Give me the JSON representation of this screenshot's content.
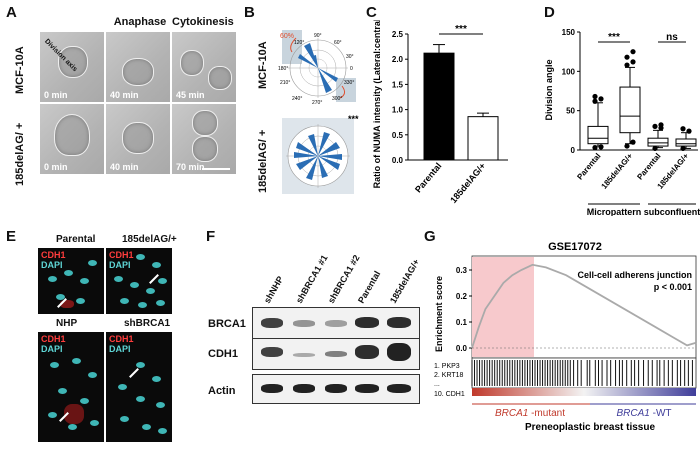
{
  "panel_letters": {
    "a": "A",
    "b": "B",
    "c": "C",
    "d": "D",
    "e": "E",
    "f": "F",
    "g": "G"
  },
  "panel_a": {
    "col_headers": [
      "Anaphase",
      "Cytokinesis"
    ],
    "row_labels": [
      "MCF-10A",
      "185delAG/ +"
    ],
    "axis_annotation": "Division axis",
    "times": [
      [
        "0 min",
        "40 min",
        "45 min"
      ],
      [
        "0 min",
        "40 min",
        "70 min"
      ]
    ]
  },
  "panel_b": {
    "row_labels": [
      "MCF-10A",
      "185delAG/ +"
    ],
    "percent_label": "60%",
    "angle_labels": [
      "90°",
      "120°",
      "60°",
      "150°",
      "30°",
      "180°",
      "0",
      "210°",
      "330°",
      "240°",
      "300°",
      "270°"
    ],
    "significance": "***"
  },
  "panel_c": {
    "chart_data": {
      "type": "bar",
      "categories": [
        "Parental",
        "185delAG/+"
      ],
      "values": [
        2.12,
        0.86
      ],
      "errors": [
        0.17,
        0.07
      ],
      "ylabel": "Ratio of NUMA intensity (Lateral:central)",
      "ylim": [
        0,
        2.5
      ],
      "yticks": [
        "0.0",
        "0.5",
        "1.0",
        "1.5",
        "2.0",
        "2.5"
      ],
      "significance": "***"
    }
  },
  "panel_d": {
    "chart_data": {
      "type": "box",
      "categories": [
        "Parental",
        "185delAG/+",
        "Parental",
        "185delAG/+"
      ],
      "groups": [
        "Micropattern",
        "subconfluent"
      ],
      "boxes": [
        {
          "min": 5,
          "q1": 8,
          "median": 15,
          "q3": 30,
          "max": 60,
          "outliers": [
            3,
            4,
            62,
            65,
            68
          ]
        },
        {
          "min": 8,
          "q1": 22,
          "median": 43,
          "q3": 80,
          "max": 105,
          "outliers": [
            5,
            10,
            108,
            112,
            118,
            125
          ]
        },
        {
          "min": 3,
          "q1": 5,
          "median": 9,
          "q3": 15,
          "max": 25,
          "outliers": [
            2,
            28,
            30,
            32
          ]
        },
        {
          "min": 2,
          "q1": 5,
          "median": 8,
          "q3": 14,
          "max": 22,
          "outliers": [
            2,
            24,
            27
          ]
        }
      ],
      "ylabel": "Division angle",
      "ylim": [
        0,
        150
      ],
      "yticks": [
        "0",
        "50",
        "100",
        "150"
      ],
      "significance": [
        "***",
        "ns"
      ]
    }
  },
  "panel_e": {
    "labels": [
      "Parental",
      "185delAG/+",
      "NHP",
      "shBRCA1"
    ],
    "stain_cdh1": "CDH1",
    "stain_dapi": "DAPI"
  },
  "panel_f": {
    "lanes": [
      "shNHP",
      "shBRCA1 #1",
      "shBRCA1 #2",
      "Parental",
      "185delAG/+"
    ],
    "blots": [
      "BRCA1",
      "CDH1",
      "Actin"
    ]
  },
  "panel_g": {
    "title": "GSE17072",
    "ylabel": "Enrichment score",
    "yticks": [
      "0.3",
      "0.2",
      "0.1",
      "0.0"
    ],
    "annotation_line1": "Cell-cell adherens junction",
    "annotation_line2": "p < 0.001",
    "genes": [
      "1. PKP3",
      "2. KRT18",
      "...",
      "10. CDH1"
    ],
    "left_group_italic": "BRCA1",
    "left_group_rest": " -mutant",
    "right_group_italic": "BRCA1",
    "right_group_rest": " -WT",
    "xlabel": "Preneoplastic breast tissue",
    "colors": {
      "leading_edge": "#f7c9cc",
      "mutant": "#c0392b",
      "wt": "#3f3d9a"
    }
  }
}
